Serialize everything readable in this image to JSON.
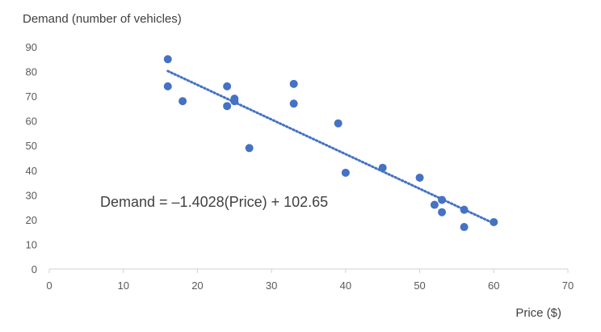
{
  "chart_data": {
    "type": "scatter",
    "title": "",
    "ylabel": "Demand (number of vehicles)",
    "xlabel": "Price ($)",
    "xlim": [
      0,
      70
    ],
    "ylim": [
      0,
      90
    ],
    "x_ticks": [
      "0",
      "10",
      "20",
      "30",
      "40",
      "50",
      "60",
      "70"
    ],
    "y_ticks": [
      "0",
      "10",
      "20",
      "30",
      "40",
      "50",
      "60",
      "70",
      "80",
      "90"
    ],
    "grid": false,
    "legend": "none",
    "series": [
      {
        "name": "Demand",
        "color": "#4472C4",
        "points": [
          {
            "x": 16,
            "y": 85
          },
          {
            "x": 16,
            "y": 74
          },
          {
            "x": 18,
            "y": 68
          },
          {
            "x": 24,
            "y": 74
          },
          {
            "x": 24,
            "y": 66
          },
          {
            "x": 25,
            "y": 69
          },
          {
            "x": 25,
            "y": 68
          },
          {
            "x": 27,
            "y": 49
          },
          {
            "x": 33,
            "y": 75
          },
          {
            "x": 33,
            "y": 67
          },
          {
            "x": 39,
            "y": 59
          },
          {
            "x": 40,
            "y": 39
          },
          {
            "x": 45,
            "y": 41
          },
          {
            "x": 50,
            "y": 37
          },
          {
            "x": 52,
            "y": 26
          },
          {
            "x": 53,
            "y": 28
          },
          {
            "x": 53,
            "y": 23
          },
          {
            "x": 56,
            "y": 24
          },
          {
            "x": 56,
            "y": 17
          },
          {
            "x": 60,
            "y": 19
          }
        ]
      }
    ],
    "trendline": {
      "slope": -1.4028,
      "intercept": 102.65,
      "x_from": 16,
      "x_to": 60,
      "style": "dotted",
      "color": "#4472C4"
    },
    "annotations": [
      "Demand = –1.4028(Price) + 102.65"
    ]
  }
}
